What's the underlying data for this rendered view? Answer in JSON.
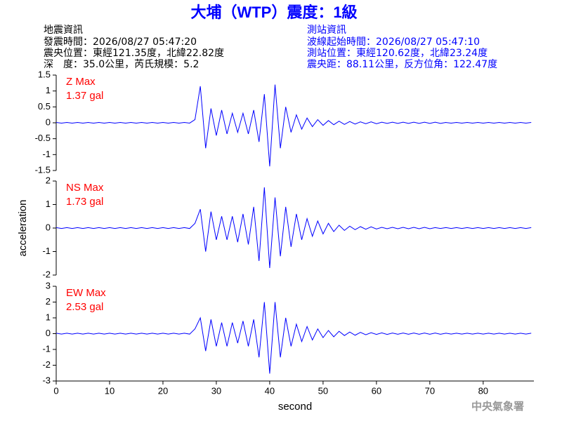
{
  "header": {
    "title": "大埔（WTP）震度：1級",
    "left": [
      "地震資訊",
      "發震時間：2026/08/27 05:47:20",
      "震央位置：東經121.35度，北緯22.82度",
      "深　度：35.0公里，芮氏規模：5.2"
    ],
    "right": [
      "測站資訊",
      "波線起始時間：2026/08/27 05:47:10",
      "測站位置：東經120.62度，北緯23.24度",
      "震央距：88.11公里，反方位角：122.47度"
    ]
  },
  "footer": "中央氣象署",
  "chart_data": [
    {
      "type": "line",
      "label": "Z Max",
      "max_label": "1.37 gal",
      "color": "#0000ff",
      "label_color": "#ff0000",
      "xlim": [
        0,
        89.5
      ],
      "ylim": [
        -1.5,
        1.5
      ],
      "yticks": [
        -1.5,
        -1,
        -0.5,
        0,
        0.5,
        1,
        1.5
      ],
      "x": [
        0,
        1,
        2,
        3,
        4,
        5,
        6,
        7,
        8,
        9,
        10,
        11,
        12,
        13,
        14,
        15,
        16,
        17,
        18,
        19,
        20,
        21,
        22,
        23,
        24,
        25,
        26,
        27,
        28,
        29,
        30,
        31,
        32,
        33,
        34,
        35,
        36,
        37,
        38,
        39,
        40,
        41,
        42,
        43,
        44,
        45,
        46,
        47,
        48,
        49,
        50,
        51,
        52,
        53,
        54,
        55,
        56,
        57,
        58,
        59,
        60,
        61,
        62,
        63,
        64,
        65,
        66,
        67,
        68,
        69,
        70,
        71,
        72,
        73,
        74,
        75,
        76,
        77,
        78,
        79,
        80,
        81,
        82,
        83,
        84,
        85,
        86,
        87,
        88,
        89
      ],
      "values": [
        0.01,
        -0.01,
        0.01,
        -0.01,
        0.01,
        -0.01,
        0.01,
        -0.01,
        0.01,
        -0.01,
        0.01,
        -0.01,
        0.01,
        -0.01,
        0.01,
        -0.01,
        0.01,
        -0.01,
        0.01,
        -0.01,
        0.01,
        -0.01,
        0.01,
        -0.01,
        0.01,
        -0.01,
        0.1,
        1.15,
        -0.8,
        0.45,
        -0.4,
        0.4,
        -0.35,
        0.3,
        -0.3,
        0.3,
        -0.35,
        0.4,
        -0.6,
        0.9,
        -1.37,
        1.2,
        -0.8,
        0.5,
        -0.3,
        0.25,
        -0.2,
        0.15,
        -0.12,
        0.1,
        -0.08,
        0.07,
        -0.06,
        0.05,
        -0.05,
        0.04,
        -0.04,
        0.03,
        -0.03,
        0.03,
        -0.03,
        0.02,
        -0.02,
        0.02,
        -0.02,
        0.02,
        -0.02,
        0.02,
        -0.02,
        0.02,
        -0.02,
        0.02,
        -0.02,
        0.01,
        -0.01,
        0.01,
        -0.01,
        0.01,
        -0.01,
        0.01,
        -0.01,
        0.01,
        -0.01,
        0.01,
        -0.01,
        0.01,
        -0.01,
        0.01,
        -0.01,
        0.01
      ]
    },
    {
      "type": "line",
      "label": "NS Max",
      "max_label": "1.73 gal",
      "color": "#0000ff",
      "label_color": "#ff0000",
      "y_label": "acceleration",
      "xlim": [
        0,
        89.5
      ],
      "ylim": [
        -2,
        2
      ],
      "yticks": [
        -2,
        -1,
        0,
        1,
        2
      ],
      "x": [
        0,
        1,
        2,
        3,
        4,
        5,
        6,
        7,
        8,
        9,
        10,
        11,
        12,
        13,
        14,
        15,
        16,
        17,
        18,
        19,
        20,
        21,
        22,
        23,
        24,
        25,
        26,
        27,
        28,
        29,
        30,
        31,
        32,
        33,
        34,
        35,
        36,
        37,
        38,
        39,
        40,
        41,
        42,
        43,
        44,
        45,
        46,
        47,
        48,
        49,
        50,
        51,
        52,
        53,
        54,
        55,
        56,
        57,
        58,
        59,
        60,
        61,
        62,
        63,
        64,
        65,
        66,
        67,
        68,
        69,
        70,
        71,
        72,
        73,
        74,
        75,
        76,
        77,
        78,
        79,
        80,
        81,
        82,
        83,
        84,
        85,
        86,
        87,
        88,
        89
      ],
      "values": [
        0.02,
        -0.02,
        0.02,
        -0.02,
        0.02,
        -0.02,
        0.02,
        -0.02,
        0.02,
        -0.02,
        0.02,
        -0.02,
        0.02,
        -0.02,
        0.02,
        -0.02,
        0.02,
        -0.02,
        0.02,
        -0.02,
        0.02,
        -0.02,
        0.02,
        -0.02,
        0.02,
        -0.02,
        0.2,
        0.8,
        -1.0,
        0.7,
        -0.5,
        0.5,
        -0.5,
        0.5,
        -0.6,
        0.6,
        -0.7,
        0.9,
        -1.4,
        1.73,
        -1.7,
        1.3,
        -1.2,
        0.9,
        -0.8,
        0.6,
        -0.5,
        0.4,
        -0.35,
        0.3,
        -0.25,
        0.2,
        -0.15,
        0.12,
        -0.1,
        0.08,
        -0.07,
        0.06,
        -0.05,
        0.05,
        -0.04,
        0.03,
        -0.03,
        0.03,
        -0.03,
        0.03,
        -0.03,
        0.03,
        -0.03,
        0.03,
        -0.03,
        0.02,
        -0.02,
        0.02,
        -0.02,
        0.02,
        -0.02,
        0.02,
        -0.02,
        0.02,
        -0.02,
        0.02,
        -0.02,
        0.02,
        -0.02,
        0.02,
        -0.02,
        0.02,
        -0.02,
        0.02
      ]
    },
    {
      "type": "line",
      "label": "EW Max",
      "max_label": "2.53 gal",
      "color": "#0000ff",
      "label_color": "#ff0000",
      "x_label": "second",
      "xlim": [
        0,
        89.5
      ],
      "ylim": [
        -3,
        3
      ],
      "yticks": [
        -3,
        -2,
        -1,
        0,
        1,
        2,
        3
      ],
      "xticks": [
        0,
        10,
        20,
        30,
        40,
        50,
        60,
        70,
        80
      ],
      "x": [
        0,
        1,
        2,
        3,
        4,
        5,
        6,
        7,
        8,
        9,
        10,
        11,
        12,
        13,
        14,
        15,
        16,
        17,
        18,
        19,
        20,
        21,
        22,
        23,
        24,
        25,
        26,
        27,
        28,
        29,
        30,
        31,
        32,
        33,
        34,
        35,
        36,
        37,
        38,
        39,
        40,
        41,
        42,
        43,
        44,
        45,
        46,
        47,
        48,
        49,
        50,
        51,
        52,
        53,
        54,
        55,
        56,
        57,
        58,
        59,
        60,
        61,
        62,
        63,
        64,
        65,
        66,
        67,
        68,
        69,
        70,
        71,
        72,
        73,
        74,
        75,
        76,
        77,
        78,
        79,
        80,
        81,
        82,
        83,
        84,
        85,
        86,
        87,
        88,
        89
      ],
      "values": [
        0.03,
        -0.03,
        0.03,
        -0.03,
        0.03,
        -0.03,
        0.03,
        -0.03,
        0.03,
        -0.03,
        0.03,
        -0.03,
        0.03,
        -0.03,
        0.03,
        -0.03,
        0.03,
        -0.03,
        0.03,
        -0.03,
        0.03,
        -0.03,
        0.03,
        -0.03,
        0.03,
        -0.03,
        0.3,
        1.0,
        -1.1,
        0.9,
        -0.8,
        0.7,
        -0.8,
        0.7,
        -0.6,
        0.8,
        -0.8,
        0.9,
        -1.5,
        2.0,
        -2.53,
        2.0,
        -1.5,
        1.0,
        -0.8,
        0.6,
        -0.5,
        0.45,
        -0.4,
        0.3,
        -0.25,
        0.2,
        -0.2,
        0.15,
        -0.12,
        0.1,
        -0.1,
        0.08,
        -0.07,
        0.06,
        -0.05,
        0.05,
        -0.05,
        0.04,
        -0.04,
        0.04,
        -0.04,
        0.04,
        -0.04,
        0.04,
        -0.04,
        0.04,
        -0.04,
        0.03,
        -0.03,
        0.03,
        -0.03,
        0.03,
        -0.03,
        0.03,
        -0.03,
        0.03,
        -0.03,
        0.03,
        -0.03,
        0.03,
        -0.03,
        0.03,
        -0.03,
        0.03
      ]
    }
  ]
}
